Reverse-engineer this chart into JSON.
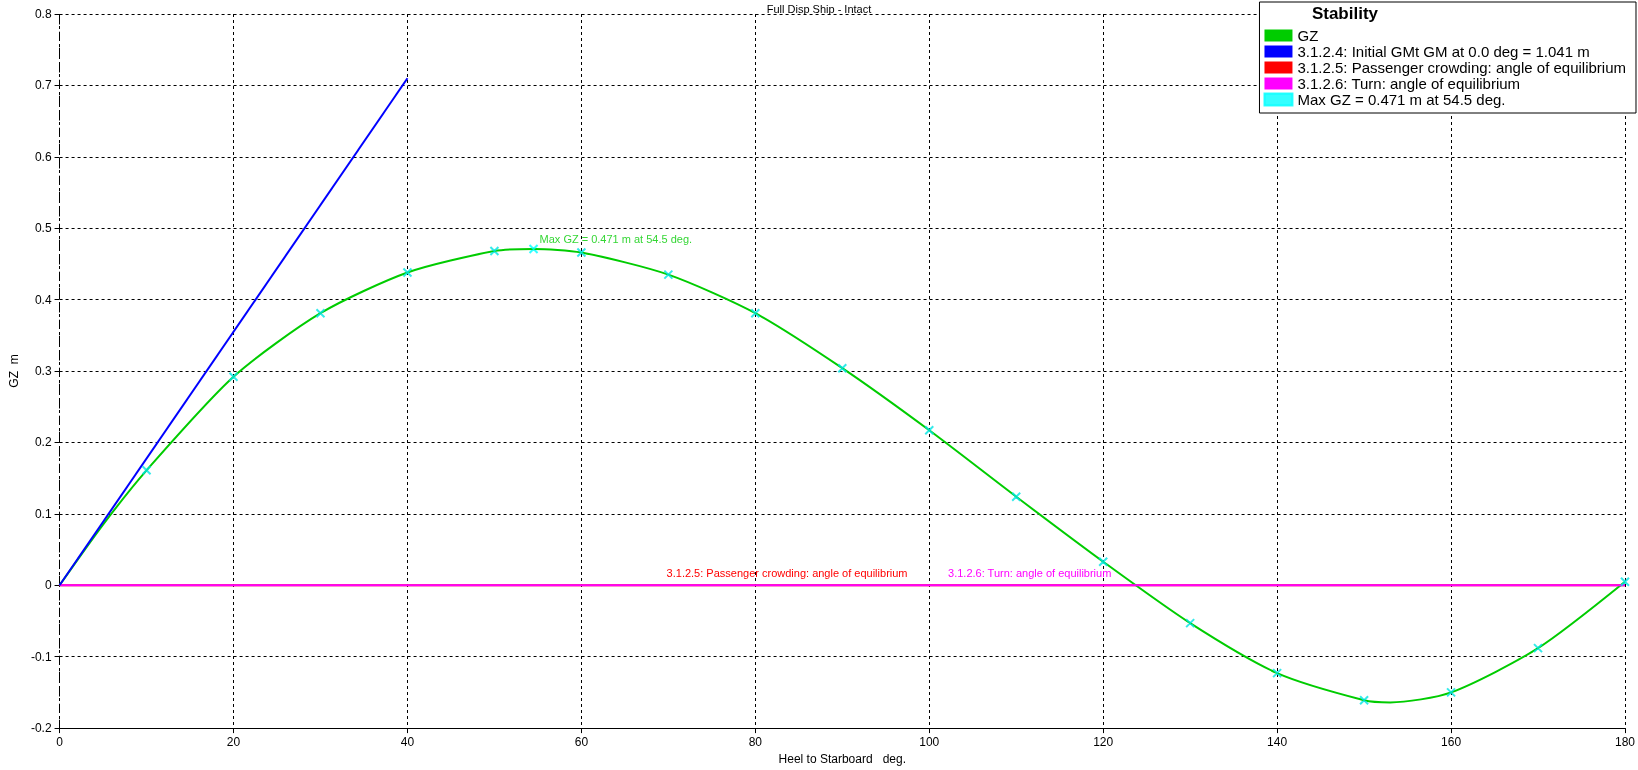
{
  "chart_data": {
    "type": "line",
    "title": "Full Disp Ship - Intact",
    "xlabel": "Heel to Starboard   deg.",
    "ylabel": "GZ  m",
    "legend_title": "Stability",
    "xlim": [
      0,
      180
    ],
    "xticks": [
      0,
      20,
      40,
      60,
      80,
      100,
      120,
      140,
      160,
      180
    ],
    "ylim": [
      -0.2,
      0.8
    ],
    "yticks": [
      -0.2,
      -0.1,
      0,
      0.1,
      0.2,
      0.3,
      0.4,
      0.5,
      0.6,
      0.7,
      0.8
    ],
    "grid": true,
    "legend": "top right",
    "series": [
      {
        "name": "GZ",
        "color": "#00cc00",
        "marker": "none",
        "x": [
          0,
          5,
          10,
          20,
          30,
          40,
          50,
          54.5,
          60,
          70,
          80,
          90,
          100,
          110,
          120,
          130,
          140,
          150,
          153,
          160,
          170,
          180
        ],
        "values": [
          0,
          0.085,
          0.161,
          0.292,
          0.381,
          0.438,
          0.468,
          0.471,
          0.466,
          0.435,
          0.381,
          0.304,
          0.217,
          0.124,
          0.033,
          -0.053,
          -0.123,
          -0.161,
          -0.164,
          -0.15,
          -0.088,
          0.005
        ]
      },
      {
        "name": "3.1.2.4: Initial GMt GM at 0.0 deg = 1.041 m",
        "color": "#0000ff",
        "marker": "none",
        "x": [
          0,
          40
        ],
        "values": [
          0,
          0.71
        ]
      },
      {
        "name": "Max GZ = 0.471 m at 54.5 deg.",
        "color": "#00ffff",
        "type": "scatter",
        "marker": "cross",
        "x": [
          54.5
        ],
        "values": [
          0.471
        ]
      },
      {
        "color": "#00e5e5",
        "type": "scatter",
        "marker": "cross",
        "x": [
          10,
          20,
          30,
          40,
          50,
          60,
          70,
          80,
          90,
          100,
          110,
          120,
          130,
          140,
          150,
          160,
          170,
          180
        ],
        "values": [
          0.161,
          0.292,
          0.381,
          0.438,
          0.468,
          0.466,
          0.435,
          0.381,
          0.304,
          0.217,
          0.124,
          0.033,
          -0.053,
          -0.123,
          -0.161,
          -0.15,
          -0.088,
          0.005
        ]
      }
    ],
    "ref_lines": [
      {
        "axis": "y",
        "value": 0,
        "label": "3.1.2.5: Passenger crowding: angle of equilibrium",
        "color": "#ff0000",
        "line_style": "solid"
      },
      {
        "axis": "y",
        "value": 0,
        "label": "3.1.2.6: Turn: angle of equilibrium",
        "color": "#ff00ff",
        "line_style": "solid"
      }
    ]
  }
}
